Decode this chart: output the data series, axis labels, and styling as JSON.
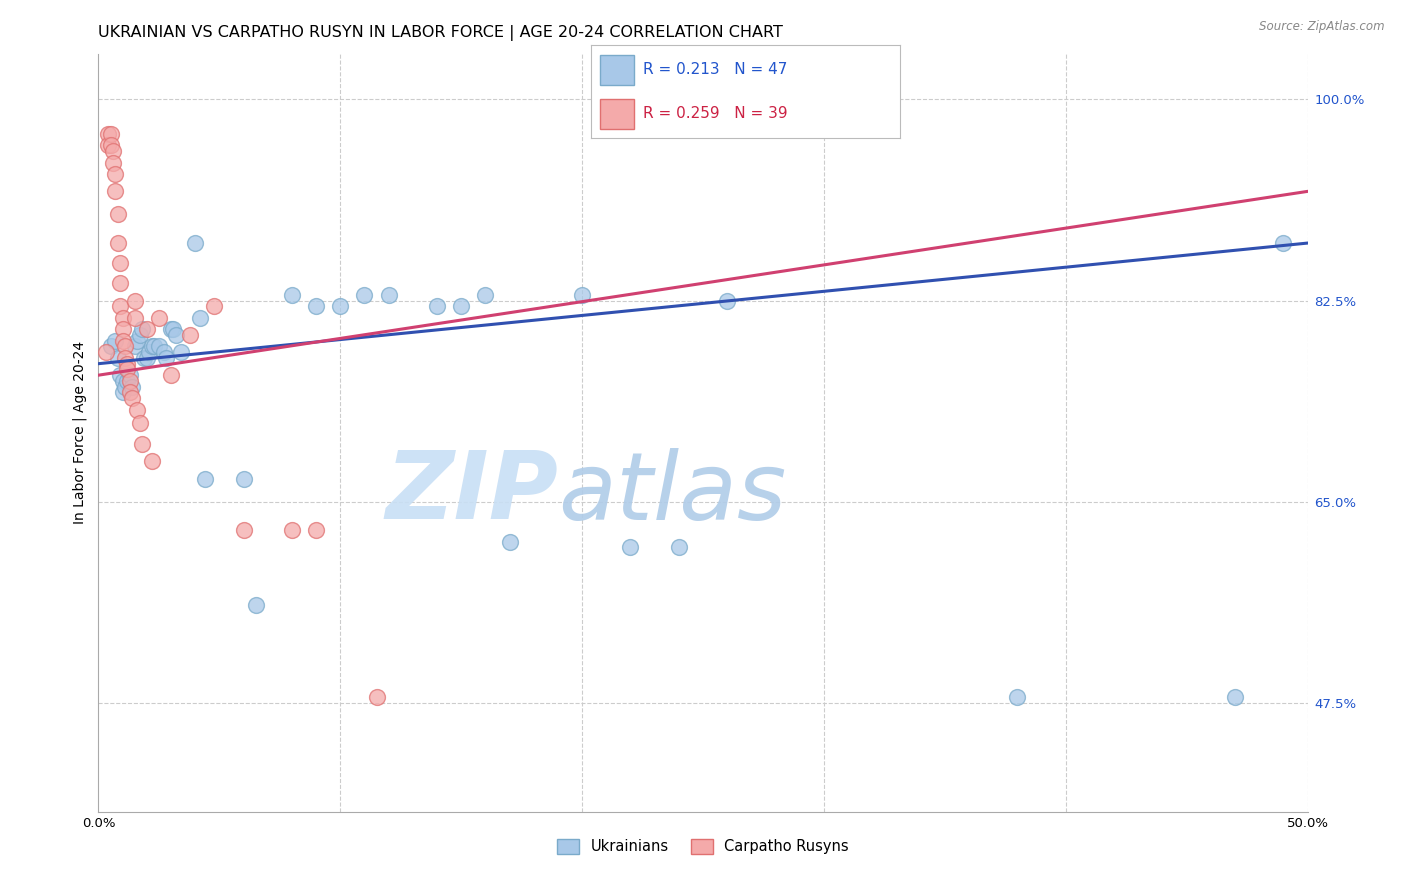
{
  "title": "UKRAINIAN VS CARPATHO RUSYN IN LABOR FORCE | AGE 20-24 CORRELATION CHART",
  "source": "Source: ZipAtlas.com",
  "ylabel": "In Labor Force | Age 20-24",
  "xlim": [
    0.0,
    0.5
  ],
  "ylim": [
    0.38,
    1.04
  ],
  "legend_label1": "Ukrainians",
  "legend_label2": "Carpatho Rusyns",
  "blue_color": "#a8c8e8",
  "blue_edge_color": "#7aaaca",
  "pink_color": "#f4aaaa",
  "pink_edge_color": "#e07070",
  "blue_line_color": "#3050b0",
  "pink_line_color": "#d04070",
  "watermark_zip": "ZIP",
  "watermark_atlas": "atlas",
  "R_blue": 0.213,
  "N_blue": 47,
  "R_pink": 0.259,
  "N_pink": 39,
  "blue_x": [
    0.005,
    0.007,
    0.008,
    0.009,
    0.01,
    0.01,
    0.011,
    0.012,
    0.013,
    0.014,
    0.015,
    0.016,
    0.017,
    0.018,
    0.019,
    0.02,
    0.021,
    0.022,
    0.023,
    0.025,
    0.027,
    0.028,
    0.03,
    0.031,
    0.032,
    0.034,
    0.04,
    0.042,
    0.044,
    0.06,
    0.065,
    0.08,
    0.09,
    0.1,
    0.11,
    0.12,
    0.14,
    0.15,
    0.16,
    0.17,
    0.2,
    0.22,
    0.24,
    0.26,
    0.38,
    0.47,
    0.49
  ],
  "blue_y": [
    0.785,
    0.79,
    0.775,
    0.76,
    0.755,
    0.745,
    0.75,
    0.755,
    0.76,
    0.75,
    0.785,
    0.79,
    0.795,
    0.8,
    0.775,
    0.775,
    0.78,
    0.785,
    0.785,
    0.785,
    0.78,
    0.775,
    0.8,
    0.8,
    0.795,
    0.78,
    0.875,
    0.81,
    0.67,
    0.67,
    0.56,
    0.83,
    0.82,
    0.82,
    0.83,
    0.83,
    0.82,
    0.82,
    0.83,
    0.615,
    0.83,
    0.61,
    0.61,
    0.825,
    0.48,
    0.48,
    0.875
  ],
  "pink_x": [
    0.003,
    0.004,
    0.004,
    0.005,
    0.005,
    0.006,
    0.006,
    0.007,
    0.007,
    0.008,
    0.008,
    0.009,
    0.009,
    0.009,
    0.01,
    0.01,
    0.01,
    0.011,
    0.011,
    0.012,
    0.012,
    0.013,
    0.013,
    0.014,
    0.015,
    0.015,
    0.016,
    0.017,
    0.018,
    0.02,
    0.022,
    0.025,
    0.03,
    0.038,
    0.048,
    0.06,
    0.08,
    0.09,
    0.115
  ],
  "pink_y": [
    0.78,
    0.97,
    0.96,
    0.97,
    0.96,
    0.955,
    0.945,
    0.935,
    0.92,
    0.9,
    0.875,
    0.858,
    0.84,
    0.82,
    0.81,
    0.8,
    0.79,
    0.785,
    0.775,
    0.77,
    0.765,
    0.755,
    0.745,
    0.74,
    0.825,
    0.81,
    0.73,
    0.718,
    0.7,
    0.8,
    0.685,
    0.81,
    0.76,
    0.795,
    0.82,
    0.625,
    0.625,
    0.625,
    0.48
  ],
  "grid_color": "#cccccc",
  "background_color": "#ffffff",
  "title_fontsize": 11.5,
  "axis_fontsize": 10,
  "tick_fontsize": 9.5
}
